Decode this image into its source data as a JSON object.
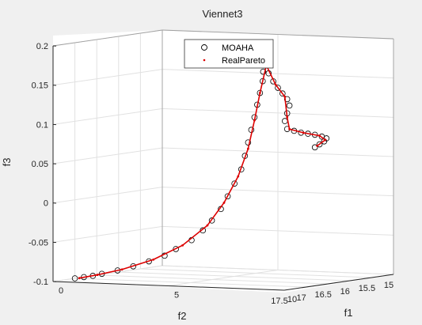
{
  "chart_data": {
    "type": "scatter",
    "title": "Viennet3",
    "xlabel": "f1",
    "ylabel": "f2",
    "zlabel": "f3",
    "xlim": [
      0,
      10
    ],
    "ylim": [
      15,
      17.5
    ],
    "zlim": [
      -0.1,
      0.2
    ],
    "x_ticks": [
      "0",
      "5",
      "10"
    ],
    "y_ticks": [
      "15",
      "15.5",
      "16",
      "16.5",
      "17",
      "17.5"
    ],
    "z_ticks": [
      "-0.1",
      "-0.05",
      "0",
      "0.05",
      "0.1",
      "0.15",
      "0.2"
    ],
    "grid": true,
    "legend_position": "top-right",
    "series": [
      {
        "name": "MOAHA",
        "marker": "circle",
        "color": "#000000",
        "points": [
          [
            0.0,
            17.0,
            -0.1
          ],
          [
            0.2,
            16.9,
            -0.099
          ],
          [
            0.4,
            16.8,
            -0.098
          ],
          [
            0.6,
            16.7,
            -0.096
          ],
          [
            0.9,
            16.5,
            -0.093
          ],
          [
            1.2,
            16.3,
            -0.089
          ],
          [
            1.5,
            16.1,
            -0.084
          ],
          [
            1.8,
            15.9,
            -0.078
          ],
          [
            2.1,
            15.8,
            -0.07
          ],
          [
            2.4,
            15.6,
            -0.06
          ],
          [
            2.7,
            15.5,
            -0.048
          ],
          [
            2.9,
            15.4,
            -0.036
          ],
          [
            3.1,
            15.3,
            -0.022
          ],
          [
            3.3,
            15.25,
            -0.006
          ],
          [
            3.5,
            15.2,
            0.01
          ],
          [
            3.7,
            15.15,
            0.028
          ],
          [
            3.8,
            15.12,
            0.045
          ],
          [
            3.9,
            15.1,
            0.062
          ],
          [
            4.0,
            15.08,
            0.078
          ],
          [
            4.1,
            15.06,
            0.094
          ],
          [
            4.2,
            15.05,
            0.11
          ],
          [
            4.3,
            15.04,
            0.125
          ],
          [
            4.4,
            15.03,
            0.14
          ],
          [
            4.4,
            15.02,
            0.152
          ],
          [
            4.5,
            15.0,
            0.163
          ],
          [
            4.6,
            15.0,
            0.15
          ],
          [
            4.8,
            15.0,
            0.14
          ],
          [
            5.0,
            15.0,
            0.132
          ],
          [
            5.2,
            15.0,
            0.125
          ],
          [
            5.4,
            15.0,
            0.118
          ],
          [
            5.5,
            15.0,
            0.11
          ],
          [
            5.4,
            15.0,
            0.1
          ],
          [
            5.3,
            15.0,
            0.09
          ],
          [
            5.4,
            15.0,
            0.08
          ],
          [
            5.7,
            15.0,
            0.078
          ],
          [
            6.0,
            15.0,
            0.076
          ],
          [
            6.3,
            15.0,
            0.075
          ],
          [
            6.6,
            15.0,
            0.074
          ],
          [
            6.9,
            15.0,
            0.072
          ],
          [
            7.1,
            15.0,
            0.07
          ],
          [
            7.0,
            15.0,
            0.066
          ],
          [
            6.8,
            15.0,
            0.062
          ],
          [
            6.6,
            15.0,
            0.058
          ]
        ]
      },
      {
        "name": "RealPareto",
        "marker": "dot",
        "color": "#dd0000",
        "points": [
          [
            0.1,
            16.95,
            -0.1
          ],
          [
            0.5,
            16.75,
            -0.097
          ],
          [
            1.0,
            16.45,
            -0.092
          ],
          [
            1.6,
            16.05,
            -0.082
          ],
          [
            2.2,
            15.7,
            -0.066
          ],
          [
            2.8,
            15.45,
            -0.042
          ],
          [
            3.2,
            15.28,
            -0.014
          ],
          [
            3.6,
            15.17,
            0.019
          ],
          [
            3.9,
            15.1,
            0.054
          ],
          [
            4.1,
            15.06,
            0.09
          ],
          [
            4.3,
            15.04,
            0.125
          ],
          [
            4.5,
            15.0,
            0.16
          ],
          [
            4.9,
            15.0,
            0.136
          ],
          [
            5.3,
            15.0,
            0.121
          ],
          [
            5.4,
            15.0,
            0.095
          ],
          [
            5.5,
            15.0,
            0.08
          ],
          [
            6.1,
            15.0,
            0.076
          ],
          [
            6.8,
            15.0,
            0.073
          ],
          [
            7.05,
            15.0,
            0.068
          ],
          [
            6.7,
            15.0,
            0.06
          ]
        ]
      }
    ]
  }
}
